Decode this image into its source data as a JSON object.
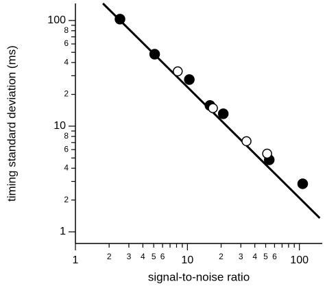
{
  "chart_data": {
    "type": "scatter",
    "x_label": "signal-to-noise ratio",
    "y_label": "timing standard deviation (ms)",
    "xlog": true,
    "ylog": true,
    "xlim": [
      1,
      160
    ],
    "ylim": [
      0.776,
      145
    ],
    "xticks": [
      1,
      2,
      3,
      4,
      5,
      6,
      10,
      {
        "value": 20,
        "label": "2"
      },
      {
        "value": 30,
        "label": "3"
      },
      {
        "value": 40,
        "label": "4"
      },
      {
        "value": 50,
        "label": "5"
      },
      {
        "value": 60,
        "label": "6"
      },
      100
    ],
    "xminor": [
      7,
      8,
      9,
      70,
      80,
      90
    ],
    "yticks": [
      1,
      2,
      4,
      6,
      8,
      10,
      {
        "value": 20,
        "label": "2"
      },
      {
        "value": 40,
        "label": "4"
      },
      {
        "value": 60,
        "label": "6"
      },
      {
        "value": 80,
        "label": "8"
      },
      100
    ],
    "yminor": [
      3,
      5,
      7,
      9,
      30,
      50,
      70,
      90
    ],
    "series": [
      {
        "marker": "filled",
        "color": "#000000",
        "x": [
          2.5,
          5.1,
          10.4,
          15.9,
          20.9,
          53.8,
          107
        ],
        "values": [
          103,
          48,
          27.6,
          15.7,
          13.1,
          4.8,
          2.85
        ]
      },
      {
        "marker": "open",
        "color": "#000000",
        "x": [
          8.2,
          16.9,
          33.7,
          51.5
        ],
        "values": [
          33,
          14.8,
          7.2,
          5.5
        ]
      }
    ],
    "fit_line": {
      "color": "#000000",
      "x": [
        1.76,
        152
      ],
      "values": [
        145,
        1.35
      ]
    }
  }
}
